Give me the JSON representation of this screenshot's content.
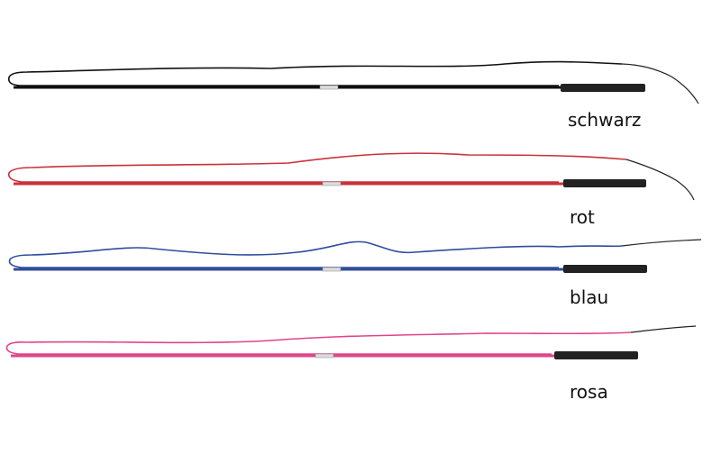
{
  "labels": [
    "schwarz",
    "rot",
    "blau",
    "rosa"
  ]
}
